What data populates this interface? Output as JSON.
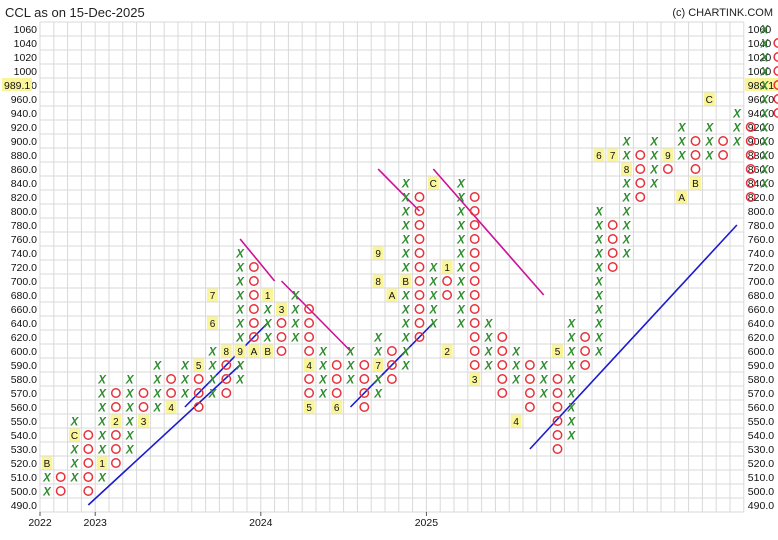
{
  "header": {
    "title": "CCL as on 15-Dec-2025",
    "credit": "(c) CHARTINK.COM"
  },
  "colors": {
    "x_color": "#2e8b2e",
    "o_color": "#e8303a",
    "label_bg": "#fbf59a",
    "downtrend": "#cc1199",
    "uptrend": "#1a1ad0",
    "grid": "#d9d9d9"
  },
  "chart_data": {
    "type": "point-and-figure",
    "title": "CCL as on 15-Dec-2025",
    "price_levels": [
      "490.0",
      "500.0",
      "510.0",
      "520.0",
      "530.0",
      "540.0",
      "550.0",
      "560.0",
      "570.0",
      "580.0",
      "590.0",
      "600.0",
      "620.0",
      "640.0",
      "660.0",
      "680.0",
      "700.0",
      "720.0",
      "740.0",
      "760.0",
      "780.0",
      "800.0",
      "820.0",
      "840.0",
      "860.0",
      "880.0",
      "900.0",
      "920.0",
      "940.0",
      "960.0",
      "980.0",
      "1000",
      "1020",
      "1040",
      "1060"
    ],
    "current_price": "989.1",
    "x_labels": [
      {
        "text": "2022",
        "col": 0
      },
      {
        "text": "2023",
        "col": 4
      },
      {
        "text": "2024",
        "col": 16
      },
      {
        "text": "2025",
        "col": 28
      }
    ],
    "columns": [
      {
        "type": "X",
        "from": 500.0,
        "to": 520.0
      },
      {
        "type": "O",
        "from": 510.0,
        "to": 500.0
      },
      {
        "type": "X",
        "from": 510.0,
        "to": 550.0
      },
      {
        "type": "O",
        "from": 540.0,
        "to": 500.0
      },
      {
        "type": "X",
        "from": 510.0,
        "to": 580.0
      },
      {
        "type": "O",
        "from": 570.0,
        "to": 520.0
      },
      {
        "type": "X",
        "from": 530.0,
        "to": 580.0
      },
      {
        "type": "O",
        "from": 570.0,
        "to": 550.0
      },
      {
        "type": "X",
        "from": 560.0,
        "to": 590.0
      },
      {
        "type": "O",
        "from": 580.0,
        "to": 560.0
      },
      {
        "type": "X",
        "from": 570.0,
        "to": 590.0
      },
      {
        "type": "O",
        "from": 580.0,
        "to": 560.0
      },
      {
        "type": "X",
        "from": 570.0,
        "to": 600.0
      },
      {
        "type": "O",
        "from": 590.0,
        "to": 570.0
      },
      {
        "type": "X",
        "from": 580.0,
        "to": 740.0
      },
      {
        "type": "O",
        "from": 720.0,
        "to": 600.0
      },
      {
        "type": "X",
        "from": 620.0,
        "to": 680.0
      },
      {
        "type": "O",
        "from": 660.0,
        "to": 600.0
      },
      {
        "type": "X",
        "from": 620.0,
        "to": 680.0
      },
      {
        "type": "O",
        "from": 660.0,
        "to": 560.0
      },
      {
        "type": "X",
        "from": 570.0,
        "to": 600.0
      },
      {
        "type": "O",
        "from": 590.0,
        "to": 570.0
      },
      {
        "type": "X",
        "from": 580.0,
        "to": 600.0
      },
      {
        "type": "O",
        "from": 590.0,
        "to": 560.0
      },
      {
        "type": "X",
        "from": 570.0,
        "to": 620.0
      },
      {
        "type": "O",
        "from": 600.0,
        "to": 580.0
      },
      {
        "type": "X",
        "from": 590.0,
        "to": 840.0
      },
      {
        "type": "O",
        "from": 820.0,
        "to": 620.0
      },
      {
        "type": "X",
        "from": 640.0,
        "to": 720.0
      },
      {
        "type": "O",
        "from": 700.0,
        "to": 680.0
      },
      {
        "type": "X",
        "from": 640.0,
        "to": 840.0
      },
      {
        "type": "O",
        "from": 820.0,
        "to": 580.0
      },
      {
        "type": "X",
        "from": 590.0,
        "to": 640.0
      },
      {
        "type": "O",
        "from": 620.0,
        "to": 570.0
      },
      {
        "type": "X",
        "from": 580.0,
        "to": 600.0
      },
      {
        "type": "O",
        "from": 590.0,
        "to": 560.0
      },
      {
        "type": "X",
        "from": 570.0,
        "to": 590.0
      },
      {
        "type": "O",
        "from": 580.0,
        "to": 530.0
      },
      {
        "type": "X",
        "from": 540.0,
        "to": 640.0
      },
      {
        "type": "O",
        "from": 620.0,
        "to": 590.0
      },
      {
        "type": "X",
        "from": 600.0,
        "to": 800.0
      },
      {
        "type": "O",
        "from": 780.0,
        "to": 720.0
      },
      {
        "type": "X",
        "from": 740.0,
        "to": 900.0
      },
      {
        "type": "O",
        "from": 880.0,
        "to": 820.0
      },
      {
        "type": "X",
        "from": 840.0,
        "to": 900.0
      },
      {
        "type": "O",
        "from": 880.0,
        "to": 860.0
      },
      {
        "type": "X",
        "from": 880.0,
        "to": 920.0
      },
      {
        "type": "O",
        "from": 900.0,
        "to": 860.0
      },
      {
        "type": "X",
        "from": 880.0,
        "to": 920.0
      },
      {
        "type": "O",
        "from": 900.0,
        "to": 880.0
      },
      {
        "type": "X",
        "from": 900.0,
        "to": 940.0
      },
      {
        "type": "O",
        "from": 920.0,
        "to": 820.0
      },
      {
        "type": "X",
        "from": 840.0,
        "to": 1060
      },
      {
        "type": "O",
        "from": 1040,
        "to": 940.0
      },
      {
        "type": "X",
        "from": 960.0,
        "to": 1020
      }
    ],
    "month_labels": [
      {
        "text": "B",
        "col": 0,
        "level": "520.0"
      },
      {
        "text": "C",
        "col": 2,
        "level": "540.0"
      },
      {
        "text": "1",
        "col": 4,
        "level": "520.0"
      },
      {
        "text": "2",
        "col": 5,
        "level": "550.0"
      },
      {
        "text": "3",
        "col": 7,
        "level": "550.0"
      },
      {
        "text": "4",
        "col": 9,
        "level": "560.0"
      },
      {
        "text": "5",
        "col": 11,
        "level": "590.0"
      },
      {
        "text": "6",
        "col": 12,
        "level": "640.0"
      },
      {
        "text": "7",
        "col": 12,
        "level": "680.0"
      },
      {
        "text": "8",
        "col": 13,
        "level": "600.0"
      },
      {
        "text": "9",
        "col": 14,
        "level": "600.0"
      },
      {
        "text": "A",
        "col": 15,
        "level": "600.0"
      },
      {
        "text": "B",
        "col": 16,
        "level": "600.0"
      },
      {
        "text": "1",
        "col": 16,
        "level": "680.0"
      },
      {
        "text": "3",
        "col": 17,
        "level": "660.0"
      },
      {
        "text": "4",
        "col": 19,
        "level": "590.0"
      },
      {
        "text": "5",
        "col": 19,
        "level": "560.0"
      },
      {
        "text": "6",
        "col": 21,
        "level": "560.0"
      },
      {
        "text": "7",
        "col": 24,
        "level": "590.0"
      },
      {
        "text": "9",
        "col": 24,
        "level": "740.0"
      },
      {
        "text": "8",
        "col": 24,
        "level": "700.0"
      },
      {
        "text": "A",
        "col": 25,
        "level": "680.0"
      },
      {
        "text": "B",
        "col": 26,
        "level": "700.0"
      },
      {
        "text": "C",
        "col": 28,
        "level": "840.0"
      },
      {
        "text": "1",
        "col": 29,
        "level": "720.0"
      },
      {
        "text": "2",
        "col": 29,
        "level": "600.0"
      },
      {
        "text": "3",
        "col": 31,
        "level": "580.0"
      },
      {
        "text": "4",
        "col": 34,
        "level": "550.0"
      },
      {
        "text": "5",
        "col": 37,
        "level": "600.0"
      },
      {
        "text": "6",
        "col": 40,
        "level": "880.0"
      },
      {
        "text": "7",
        "col": 41,
        "level": "880.0"
      },
      {
        "text": "8",
        "col": 42,
        "level": "860.0"
      },
      {
        "text": "9",
        "col": 45,
        "level": "880.0"
      },
      {
        "text": "A",
        "col": 46,
        "level": "820.0"
      },
      {
        "text": "B",
        "col": 47,
        "level": "840.0"
      },
      {
        "text": "C",
        "col": 48,
        "level": "960.0"
      }
    ],
    "trendlines": [
      {
        "kind": "uptrend",
        "from": {
          "col": 3.5,
          "level": "490.0"
        },
        "to": {
          "col": 14.5,
          "level": "590.0"
        }
      },
      {
        "kind": "uptrend",
        "from": {
          "col": 10.5,
          "level": "560.0"
        },
        "to": {
          "col": 16.5,
          "level": "640.0"
        }
      },
      {
        "kind": "downtrend",
        "from": {
          "col": 14.5,
          "level": "760.0"
        },
        "to": {
          "col": 17.0,
          "level": "700.0"
        }
      },
      {
        "kind": "downtrend",
        "from": {
          "col": 17.5,
          "level": "700.0"
        },
        "to": {
          "col": 22.5,
          "level": "600.0"
        }
      },
      {
        "kind": "uptrend",
        "from": {
          "col": 22.5,
          "level": "560.0"
        },
        "to": {
          "col": 28.5,
          "level": "640.0"
        }
      },
      {
        "kind": "downtrend",
        "from": {
          "col": 24.5,
          "level": "860.0"
        },
        "to": {
          "col": 27.5,
          "level": "800.0"
        }
      },
      {
        "kind": "downtrend",
        "from": {
          "col": 28.5,
          "level": "860.0"
        },
        "to": {
          "col": 36.5,
          "level": "680.0"
        }
      },
      {
        "kind": "uptrend",
        "from": {
          "col": 35.5,
          "level": "530.0"
        },
        "to": {
          "col": 50.5,
          "level": "780.0"
        }
      }
    ],
    "grid": true
  }
}
